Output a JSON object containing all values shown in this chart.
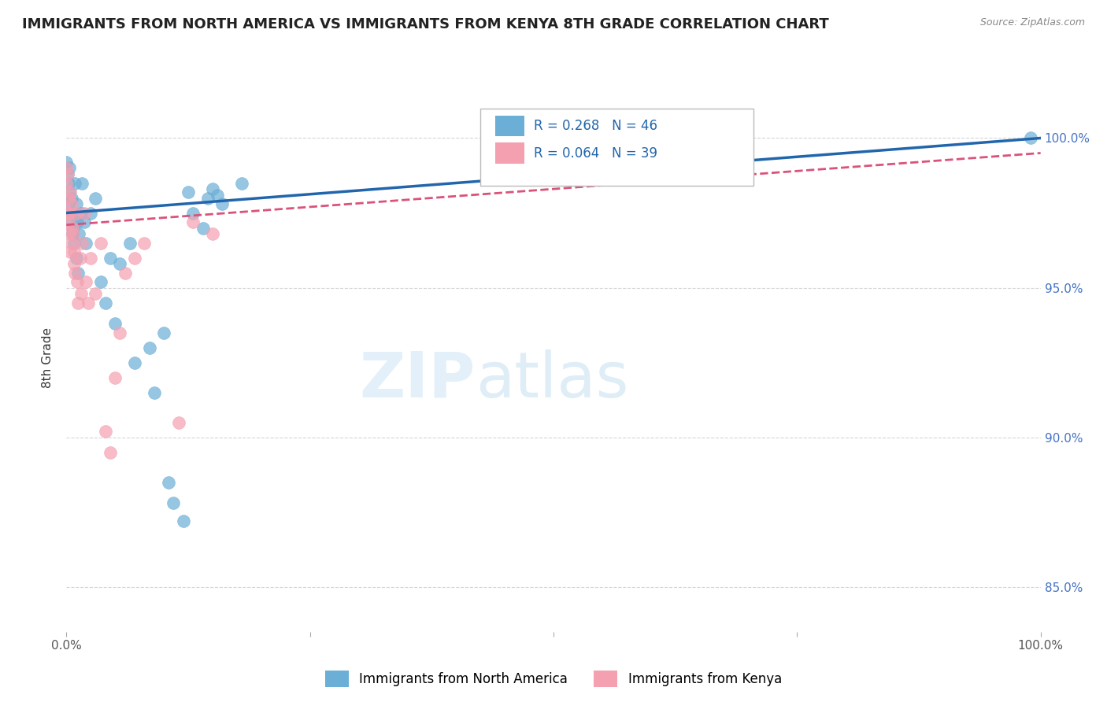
{
  "title": "IMMIGRANTS FROM NORTH AMERICA VS IMMIGRANTS FROM KENYA 8TH GRADE CORRELATION CHART",
  "source": "Source: ZipAtlas.com",
  "ylabel": "8th Grade",
  "legend_blue_label": "Immigrants from North America",
  "legend_pink_label": "Immigrants from Kenya",
  "r_blue": 0.268,
  "n_blue": 46,
  "r_pink": 0.064,
  "n_pink": 39,
  "blue_color": "#6baed6",
  "pink_color": "#f4a0b0",
  "blue_line_color": "#2166ac",
  "pink_line_color": "#d9537a",
  "xlim": [
    0,
    100
  ],
  "ylim": [
    83.5,
    101.8
  ],
  "yticks": [
    85.0,
    90.0,
    95.0,
    100.0
  ],
  "xtick_positions": [
    0,
    25,
    50,
    75,
    100
  ],
  "blue_x": [
    0.0,
    0.1,
    0.2,
    0.2,
    0.3,
    0.3,
    0.4,
    0.5,
    0.5,
    0.6,
    0.7,
    0.8,
    0.9,
    1.0,
    1.0,
    1.1,
    1.2,
    1.3,
    1.5,
    1.6,
    1.8,
    2.0,
    2.5,
    3.0,
    3.5,
    4.0,
    4.5,
    5.0,
    5.5,
    6.5,
    7.0,
    8.5,
    9.0,
    10.0,
    10.5,
    11.0,
    12.0,
    12.5,
    13.0,
    14.0,
    14.5,
    15.0,
    15.5,
    16.0,
    18.0,
    99.0
  ],
  "blue_y": [
    99.2,
    98.8,
    98.5,
    97.8,
    98.2,
    99.0,
    97.5,
    98.0,
    97.2,
    96.8,
    97.0,
    96.5,
    98.5,
    96.0,
    97.8,
    97.2,
    95.5,
    96.8,
    97.5,
    98.5,
    97.2,
    96.5,
    97.5,
    98.0,
    95.2,
    94.5,
    96.0,
    93.8,
    95.8,
    96.5,
    92.5,
    93.0,
    91.5,
    93.5,
    88.5,
    87.8,
    87.2,
    98.2,
    97.5,
    97.0,
    98.0,
    98.3,
    98.1,
    97.8,
    98.5,
    100.0
  ],
  "pink_x": [
    0.0,
    0.0,
    0.1,
    0.1,
    0.2,
    0.2,
    0.3,
    0.3,
    0.4,
    0.4,
    0.5,
    0.5,
    0.6,
    0.7,
    0.8,
    0.8,
    0.9,
    1.0,
    1.1,
    1.2,
    1.4,
    1.5,
    1.6,
    1.8,
    2.0,
    2.2,
    2.5,
    3.0,
    3.5,
    4.0,
    4.5,
    5.0,
    5.5,
    6.0,
    7.0,
    8.0,
    11.5,
    13.0,
    15.0
  ],
  "pink_y": [
    99.0,
    98.5,
    98.8,
    97.5,
    98.0,
    97.2,
    96.8,
    97.5,
    96.2,
    98.2,
    97.8,
    96.5,
    97.0,
    96.8,
    95.8,
    96.2,
    95.5,
    97.5,
    95.2,
    94.5,
    96.0,
    94.8,
    96.5,
    97.5,
    95.2,
    94.5,
    96.0,
    94.8,
    96.5,
    90.2,
    89.5,
    92.0,
    93.5,
    95.5,
    96.0,
    96.5,
    90.5,
    97.2,
    96.8
  ]
}
